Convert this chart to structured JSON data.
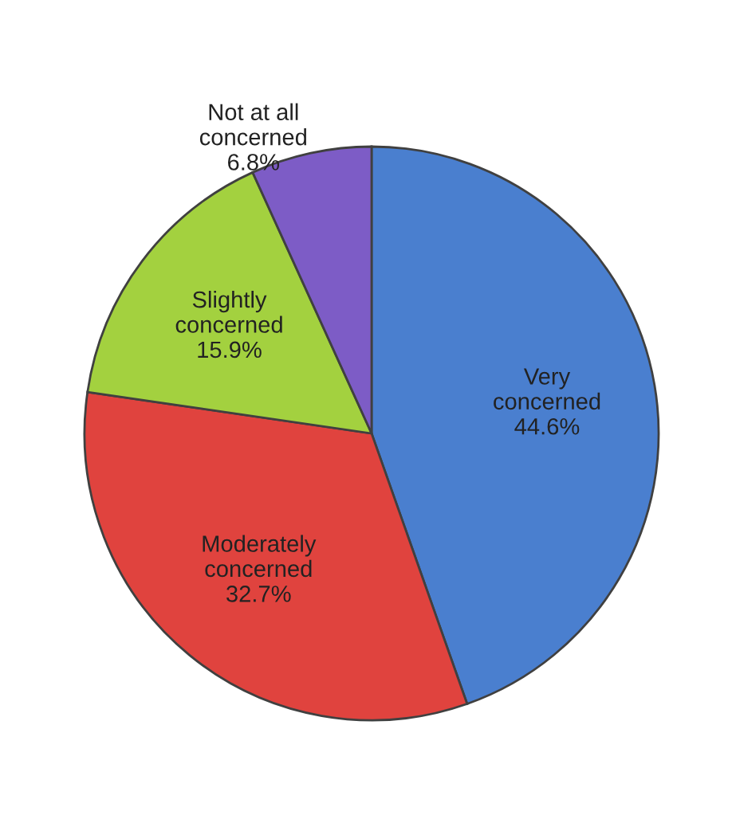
{
  "chart_data": {
    "type": "pie",
    "categories": [
      "Very\nconcerned",
      "Moderately\nconcerned",
      "Slightly\nconcerned",
      "Not at all\nconcerned"
    ],
    "values": [
      44.6,
      32.7,
      15.9,
      6.8
    ],
    "value_labels": [
      "44.6%",
      "32.7%",
      "15.9%",
      "6.8%"
    ],
    "colors": [
      "#4a7fcf",
      "#e0433e",
      "#a3d13f",
      "#7d5cc6"
    ],
    "legend": false
  }
}
